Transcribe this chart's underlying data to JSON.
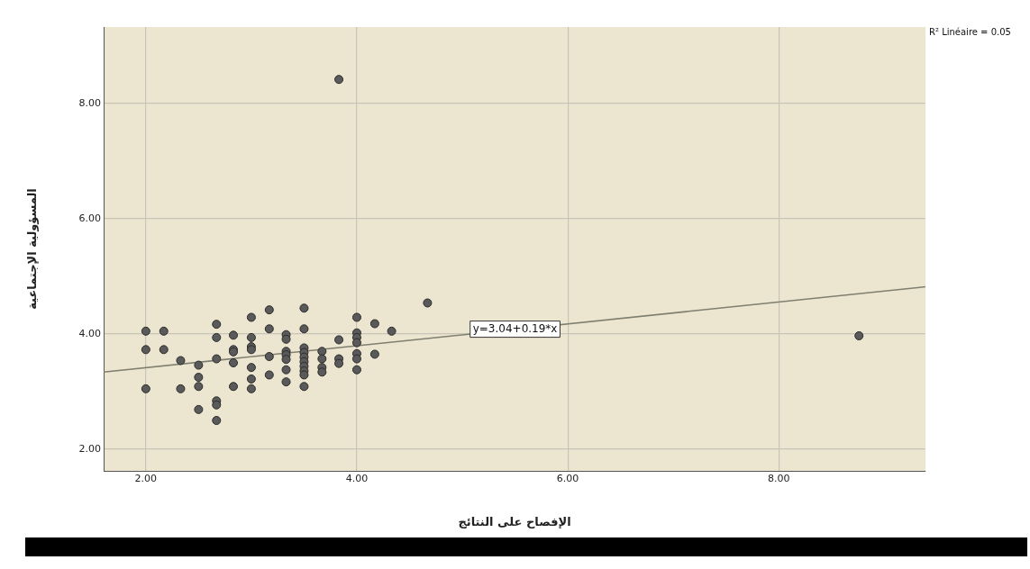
{
  "chart_data": {
    "type": "scatter",
    "xlabel": "الإفصاح على النتائج",
    "ylabel": "المسؤولية الإجتماعية",
    "xlim": [
      1.6,
      9.39
    ],
    "ylim": [
      1.625,
      9.33
    ],
    "xticks": [
      {
        "value": 2,
        "label": "2.00"
      },
      {
        "value": 4,
        "label": "4.00"
      },
      {
        "value": 6,
        "label": "6.00"
      },
      {
        "value": 8,
        "label": "8.00"
      }
    ],
    "yticks": [
      {
        "value": 2,
        "label": "2.00"
      },
      {
        "value": 4,
        "label": "4.00"
      },
      {
        "value": 6,
        "label": "6.00"
      },
      {
        "value": 8,
        "label": "8.00"
      }
    ],
    "grid": true,
    "marker": "circle",
    "series": [
      {
        "color": "#5a5a5a",
        "x": [
          2,
          2,
          2,
          2.17,
          2.17,
          2.33,
          2.33,
          2.5,
          2.5,
          2.5,
          2.5,
          2.67,
          2.67,
          2.67,
          2.67,
          2.67,
          2.67,
          2.83,
          2.83,
          2.83,
          2.83,
          2.83,
          3,
          3,
          3,
          3,
          3,
          3,
          3,
          3.17,
          3.17,
          3.17,
          3.17,
          3.33,
          3.33,
          3.33,
          3.33,
          3.33,
          3.33,
          3.33,
          3.5,
          3.5,
          3.5,
          3.5,
          3.5,
          3.5,
          3.5,
          3.5,
          3.5,
          3.5,
          3.67,
          3.67,
          3.67,
          3.67,
          3.83,
          3.83,
          3.83,
          3.83,
          4,
          4,
          4,
          4,
          4,
          4,
          4,
          4.17,
          4.17,
          4.33,
          4.67,
          8.76
        ],
        "values": [
          4.05,
          3.73,
          3.05,
          4.05,
          3.73,
          3.54,
          3.05,
          3.46,
          3.25,
          3.09,
          2.69,
          4.17,
          3.94,
          3.57,
          2.84,
          2.77,
          2.5,
          3.98,
          3.73,
          3.69,
          3.5,
          3.09,
          4.29,
          3.94,
          3.78,
          3.73,
          3.42,
          3.22,
          3.05,
          4.42,
          4.09,
          3.61,
          3.29,
          3.99,
          3.91,
          3.7,
          3.64,
          3.56,
          3.38,
          3.17,
          4.45,
          4.09,
          3.76,
          3.68,
          3.6,
          3.52,
          3.44,
          3.36,
          3.29,
          3.09,
          3.7,
          3.57,
          3.42,
          3.34,
          8.42,
          3.9,
          3.57,
          3.49,
          4.29,
          4.02,
          3.94,
          3.85,
          3.66,
          3.57,
          3.38,
          4.18,
          3.65,
          4.05,
          4.54,
          3.97
        ]
      },
      {
        "type": "line",
        "marker": "none",
        "color": "#7f7f70",
        "x": [
          1.6,
          9.39
        ],
        "values": [
          3.34,
          4.82
        ]
      }
    ],
    "annotations": [
      {
        "text": "y=3.04+0.19*x",
        "x": 5.5,
        "y": 4.085
      },
      "R² Linéaire = 0.05"
    ]
  }
}
